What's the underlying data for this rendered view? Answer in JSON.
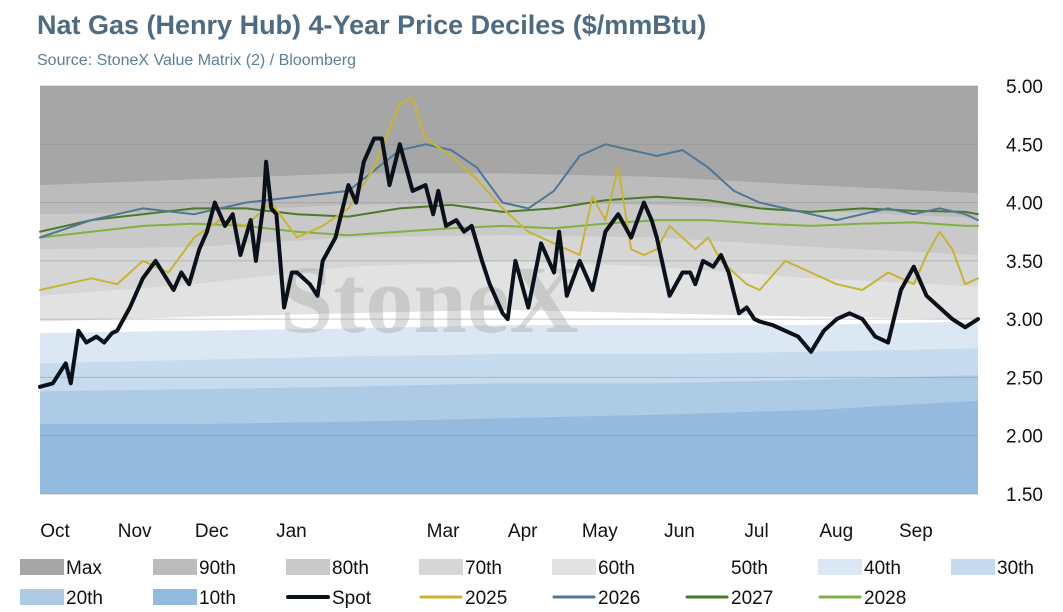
{
  "title": "Nat Gas (Henry Hub) 4-Year Price Deciles ($/mmBtu)",
  "subtitle": "Source: StoneX Value Matrix (2) / Bloomberg",
  "watermark": "StoneX",
  "chart_data": {
    "type": "area",
    "months": [
      "Oct",
      "Nov",
      "Dec",
      "Jan",
      "Mar",
      "Apr",
      "May",
      "Jun",
      "Jul",
      "Aug",
      "Sep"
    ],
    "month_days": [
      0,
      31,
      61,
      92,
      151,
      182,
      212,
      243,
      273,
      304,
      335
    ],
    "x_max": 365,
    "ylim": [
      1.5,
      5.0
    ],
    "yticks": [
      "5.00",
      "4.50",
      "4.00",
      "3.50",
      "3.00",
      "2.50",
      "2.00",
      "1.50"
    ],
    "ytick_values": [
      5.0,
      4.5,
      4.0,
      3.5,
      3.0,
      2.5,
      2.0,
      1.5
    ],
    "legend_rows": [
      [
        "Max",
        "90th",
        "80th",
        "70th",
        "60th",
        "50th",
        "40th",
        "30th"
      ],
      [
        "20th",
        "10th",
        "Spot",
        "2025",
        "2026",
        "2027",
        "2028"
      ]
    ],
    "band_colors": {
      "Max": "#a6a6a6",
      "90th": "#bcbcbc",
      "80th": "#c9c9c9",
      "70th": "#d6d6d6",
      "60th": "#e2e2e2",
      "50th": "#ffffff",
      "40th": "#dbe8f4",
      "30th": "#c6dbee",
      "20th": "#aecbe6",
      "10th": "#94bbde"
    },
    "line_colors": {
      "Spot": "#0b111b",
      "2025": "#c8b432",
      "2026": "#4e7896",
      "2027": "#4a7a2a",
      "2028": "#7fb142"
    },
    "band_days": [
      0,
      60,
      120,
      180,
      240,
      300,
      365
    ],
    "bands": [
      {
        "name": "Max",
        "values": [
          5.0,
          5.0,
          5.0,
          5.0,
          5.0,
          5.0,
          5.0
        ]
      },
      {
        "name": "90th",
        "values": [
          4.15,
          4.2,
          4.25,
          4.25,
          4.22,
          4.15,
          4.08
        ]
      },
      {
        "name": "80th",
        "values": [
          3.9,
          3.92,
          3.98,
          4.0,
          3.98,
          3.93,
          3.87
        ]
      },
      {
        "name": "70th",
        "values": [
          3.6,
          3.62,
          3.7,
          3.72,
          3.7,
          3.62,
          3.55
        ]
      },
      {
        "name": "60th",
        "values": [
          3.2,
          3.3,
          3.45,
          3.5,
          3.45,
          3.35,
          3.28
        ]
      },
      {
        "name": "50th",
        "values": [
          2.98,
          3.02,
          3.05,
          3.08,
          3.05,
          3.02,
          3.0
        ]
      },
      {
        "name": "40th",
        "values": [
          2.88,
          2.9,
          2.92,
          2.95,
          2.95,
          2.95,
          2.98
        ]
      },
      {
        "name": "30th",
        "values": [
          2.62,
          2.65,
          2.68,
          2.7,
          2.7,
          2.72,
          2.75
        ]
      },
      {
        "name": "20th",
        "values": [
          2.38,
          2.4,
          2.42,
          2.45,
          2.45,
          2.48,
          2.52
        ]
      },
      {
        "name": "10th",
        "values": [
          2.1,
          2.1,
          2.12,
          2.15,
          2.18,
          2.22,
          2.3
        ]
      }
    ],
    "series": [
      {
        "name": "Spot",
        "x": [
          0,
          5,
          10,
          12,
          15,
          18,
          22,
          25,
          28,
          30,
          35,
          40,
          45,
          52,
          55,
          58,
          62,
          65,
          68,
          72,
          75,
          78,
          82,
          84,
          87,
          88,
          90,
          92,
          95,
          98,
          100,
          105,
          108,
          110,
          115,
          120,
          123,
          126,
          130,
          133,
          136,
          140,
          145,
          150,
          153,
          155,
          158,
          162,
          165,
          168,
          172,
          175,
          177,
          180,
          182,
          185,
          190,
          195,
          200,
          202,
          205,
          210,
          215,
          220,
          225,
          230,
          235,
          238,
          240,
          245,
          250,
          253,
          255,
          258,
          262,
          265,
          268,
          272,
          275,
          278,
          280,
          285,
          290,
          295,
          300,
          305,
          310,
          315,
          320,
          325,
          330,
          335,
          340,
          345,
          350,
          355,
          360,
          365
        ],
        "values": [
          2.42,
          2.45,
          2.62,
          2.45,
          2.9,
          2.8,
          2.85,
          2.8,
          2.88,
          2.9,
          3.1,
          3.35,
          3.5,
          3.25,
          3.4,
          3.3,
          3.6,
          3.75,
          4.0,
          3.8,
          3.9,
          3.55,
          3.85,
          3.5,
          4.0,
          4.35,
          3.95,
          3.9,
          3.1,
          3.4,
          3.4,
          3.3,
          3.2,
          3.5,
          3.7,
          4.15,
          4.0,
          4.35,
          4.55,
          4.55,
          4.15,
          4.5,
          4.1,
          4.15,
          3.9,
          4.1,
          3.8,
          3.85,
          3.75,
          3.8,
          3.5,
          3.3,
          3.2,
          3.05,
          3.0,
          3.5,
          3.1,
          3.65,
          3.4,
          3.75,
          3.2,
          3.5,
          3.25,
          3.75,
          3.9,
          3.7,
          4.0,
          3.85,
          3.7,
          3.2,
          3.4,
          3.4,
          3.3,
          3.5,
          3.45,
          3.55,
          3.4,
          3.05,
          3.1,
          3.0,
          2.98,
          2.95,
          2.9,
          2.85,
          2.72,
          2.9,
          3.0,
          3.05,
          3.0,
          2.85,
          2.8,
          3.25,
          3.45,
          3.2,
          3.1,
          3.0,
          2.93,
          3.0
        ]
      },
      {
        "name": "2025",
        "x": [
          0,
          10,
          20,
          30,
          40,
          50,
          60,
          70,
          80,
          90,
          100,
          110,
          120,
          130,
          140,
          145,
          150,
          160,
          170,
          180,
          190,
          200,
          210,
          215,
          220,
          225,
          230,
          235,
          240,
          245,
          250,
          255,
          260,
          265,
          270,
          275,
          280,
          290,
          300,
          310,
          320,
          330,
          340,
          345,
          350,
          355,
          360,
          365
        ],
        "values": [
          3.25,
          3.3,
          3.35,
          3.3,
          3.5,
          3.4,
          3.7,
          3.85,
          3.8,
          4.0,
          3.7,
          3.8,
          3.95,
          4.3,
          4.85,
          4.9,
          4.55,
          4.4,
          4.2,
          3.95,
          3.75,
          3.65,
          3.55,
          4.05,
          3.85,
          4.3,
          3.6,
          3.55,
          3.6,
          3.8,
          3.7,
          3.6,
          3.7,
          3.5,
          3.4,
          3.3,
          3.25,
          3.5,
          3.4,
          3.3,
          3.25,
          3.4,
          3.3,
          3.55,
          3.75,
          3.6,
          3.3,
          3.35
        ]
      },
      {
        "name": "2026",
        "x": [
          0,
          20,
          40,
          60,
          80,
          100,
          120,
          140,
          150,
          160,
          170,
          180,
          190,
          200,
          210,
          220,
          230,
          240,
          250,
          260,
          270,
          280,
          290,
          300,
          310,
          320,
          330,
          340,
          350,
          360,
          365
        ],
        "values": [
          3.7,
          3.85,
          3.95,
          3.9,
          4.0,
          4.05,
          4.1,
          4.45,
          4.5,
          4.45,
          4.3,
          4.0,
          3.95,
          4.1,
          4.4,
          4.5,
          4.45,
          4.4,
          4.45,
          4.3,
          4.1,
          4.0,
          3.95,
          3.9,
          3.85,
          3.9,
          3.95,
          3.9,
          3.95,
          3.9,
          3.85
        ]
      },
      {
        "name": "2027",
        "x": [
          0,
          20,
          40,
          60,
          80,
          100,
          120,
          140,
          160,
          180,
          200,
          220,
          240,
          260,
          280,
          300,
          320,
          340,
          360,
          365
        ],
        "values": [
          3.75,
          3.85,
          3.9,
          3.95,
          3.95,
          3.9,
          3.88,
          3.95,
          3.98,
          3.92,
          3.95,
          4.02,
          4.05,
          4.02,
          3.95,
          3.92,
          3.95,
          3.93,
          3.92,
          3.9
        ]
      },
      {
        "name": "2028",
        "x": [
          0,
          20,
          40,
          60,
          80,
          100,
          120,
          140,
          160,
          180,
          200,
          220,
          240,
          260,
          280,
          300,
          320,
          340,
          360,
          365
        ],
        "values": [
          3.7,
          3.75,
          3.8,
          3.82,
          3.8,
          3.75,
          3.72,
          3.75,
          3.78,
          3.8,
          3.78,
          3.82,
          3.85,
          3.85,
          3.82,
          3.8,
          3.82,
          3.83,
          3.8,
          3.8
        ]
      }
    ]
  }
}
